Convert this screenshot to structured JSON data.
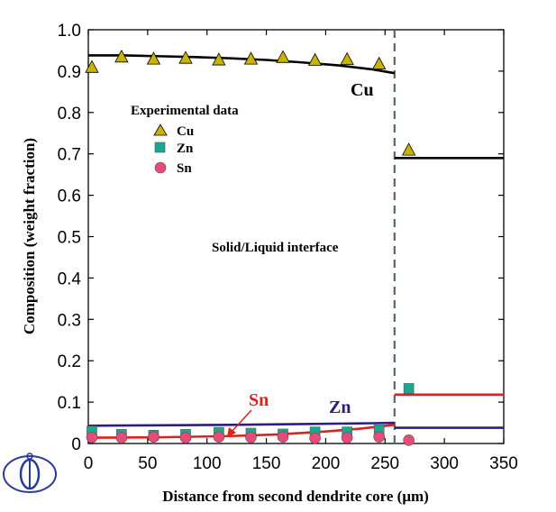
{
  "chart_data": {
    "type": "line",
    "xlabel": "Distance from second dendrite core (μm)",
    "ylabel": "Composition (weight fraction)",
    "xlim": [
      0,
      350
    ],
    "ylim": [
      0,
      1.0
    ],
    "xticks": [
      "0",
      "50",
      "100",
      "150",
      "200",
      "250",
      "300",
      "350"
    ],
    "yticks": [
      "0",
      "0.1",
      "0.2",
      "0.3",
      "0.4",
      "0.5",
      "0.6",
      "0.7",
      "0.8",
      "0.9",
      "1.0"
    ],
    "interface_x": 258,
    "interface_label": "Solid/Liquid interface",
    "legend_title": "Experimental data",
    "colors": {
      "cu_marker": "#c8b400",
      "zn_marker": "#1aa890",
      "sn_marker": "#e84a7a",
      "cu_line": "#000000",
      "zn_line": "#2b1f7a",
      "sn_line": "#e0201a",
      "interface": "#556677"
    },
    "series": [
      {
        "name": "Cu",
        "kind": "experimental",
        "marker": "triangle",
        "x": [
          3,
          28,
          55,
          82,
          110,
          137,
          164,
          191,
          218,
          245,
          270
        ],
        "y": [
          0.91,
          0.935,
          0.93,
          0.932,
          0.928,
          0.93,
          0.934,
          0.927,
          0.929,
          0.918,
          0.71
        ]
      },
      {
        "name": "Zn",
        "kind": "experimental",
        "marker": "square",
        "x": [
          3,
          28,
          55,
          82,
          110,
          137,
          164,
          191,
          218,
          245,
          270
        ],
        "y": [
          0.03,
          0.022,
          0.02,
          0.022,
          0.027,
          0.025,
          0.023,
          0.028,
          0.028,
          0.033,
          0.133
        ]
      },
      {
        "name": "Sn",
        "kind": "experimental",
        "marker": "circle",
        "x": [
          3,
          28,
          55,
          82,
          110,
          137,
          164,
          191,
          218,
          245,
          270
        ],
        "y": [
          0.015,
          0.014,
          0.016,
          0.014,
          0.016,
          0.015,
          0.016,
          0.013,
          0.014,
          0.016,
          0.008
        ]
      },
      {
        "name": "Cu",
        "kind": "calculated",
        "label": "Cu",
        "solid_x": [
          0,
          30,
          60,
          90,
          120,
          150,
          180,
          210,
          240,
          258
        ],
        "solid_y": [
          0.938,
          0.938,
          0.936,
          0.934,
          0.931,
          0.927,
          0.921,
          0.914,
          0.904,
          0.895
        ],
        "liquid_x": [
          258,
          350
        ],
        "liquid_y": [
          0.69,
          0.69
        ]
      },
      {
        "name": "Zn",
        "kind": "calculated",
        "label": "Zn",
        "solid_x": [
          0,
          60,
          120,
          180,
          240,
          258
        ],
        "solid_y": [
          0.043,
          0.044,
          0.045,
          0.047,
          0.049,
          0.05
        ],
        "liquid_x": [
          258,
          350
        ],
        "liquid_y": [
          0.038,
          0.038
        ]
      },
      {
        "name": "Sn",
        "kind": "calculated",
        "label": "Sn",
        "solid_x": [
          0,
          60,
          120,
          160,
          200,
          230,
          258
        ],
        "solid_y": [
          0.014,
          0.015,
          0.018,
          0.022,
          0.029,
          0.036,
          0.045
        ],
        "liquid_x": [
          258,
          350
        ],
        "liquid_y": [
          0.118,
          0.118
        ]
      }
    ],
    "legend_entries": [
      "Cu",
      "Zn",
      "Sn"
    ]
  },
  "logo": {
    "name": "university-logo-icon",
    "color": "#2a3a9a"
  }
}
